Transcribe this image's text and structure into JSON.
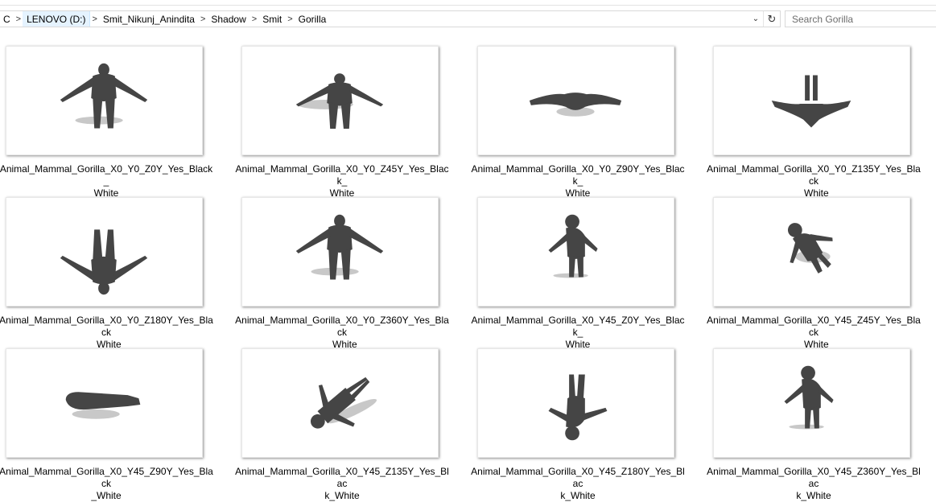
{
  "breadcrumb": {
    "items": [
      {
        "label": "C",
        "highlight": false
      },
      {
        "label": "LENOVO (D:)",
        "highlight": true
      },
      {
        "label": "Smit_Nikunj_Anindita",
        "highlight": false
      },
      {
        "label": "Shadow",
        "highlight": false
      },
      {
        "label": "Smit",
        "highlight": false
      },
      {
        "label": "Gorilla",
        "highlight": false
      }
    ],
    "separator": ">",
    "dropdown_icon": "chevron-down-icon",
    "refresh_icon": "refresh-icon"
  },
  "search": {
    "placeholder": "Search Gorilla"
  },
  "files": [
    {
      "name_line1": "Animal_Mammal_Gorilla_X0_Y0_Z0Y_Yes_Black_",
      "name_line2": "White",
      "pose": "front"
    },
    {
      "name_line1": "Animal_Mammal_Gorilla_X0_Y0_Z45Y_Yes_Black_",
      "name_line2": "White",
      "pose": "front-low"
    },
    {
      "name_line1": "Animal_Mammal_Gorilla_X0_Y0_Z90Y_Yes_Black_",
      "name_line2": "White",
      "pose": "top-flat"
    },
    {
      "name_line1": "Animal_Mammal_Gorilla_X0_Y0_Z135Y_Yes_Black",
      "name_line2": "_White",
      "pose": "top-wings"
    },
    {
      "name_line1": "Animal_Mammal_Gorilla_X0_Y0_Z180Y_Yes_Black",
      "name_line2": "_White",
      "pose": "inverted"
    },
    {
      "name_line1": "Animal_Mammal_Gorilla_X0_Y0_Z360Y_Yes_Black",
      "name_line2": "_White",
      "pose": "front"
    },
    {
      "name_line1": "Animal_Mammal_Gorilla_X0_Y45_Z0Y_Yes_Black_",
      "name_line2": "White",
      "pose": "side"
    },
    {
      "name_line1": "Animal_Mammal_Gorilla_X0_Y45_Z45Y_Yes_Black",
      "name_line2": "_White",
      "pose": "tilt"
    },
    {
      "name_line1": "Animal_Mammal_Gorilla_X0_Y45_Z90Y_Yes_Black",
      "name_line2": "_White",
      "pose": "lying"
    },
    {
      "name_line1": "Animal_Mammal_Gorilla_X0_Y45_Z135Y_Yes_Blac",
      "name_line2": "k_White",
      "pose": "diagonal"
    },
    {
      "name_line1": "Animal_Mammal_Gorilla_X0_Y45_Z180Y_Yes_Blac",
      "name_line2": "k_White",
      "pose": "inverted-side"
    },
    {
      "name_line1": "Animal_Mammal_Gorilla_X0_Y45_Z360Y_Yes_Blac",
      "name_line2": "k_White",
      "pose": "side"
    }
  ],
  "colors": {
    "figure": "#454545",
    "shadow": "#c8c8c8",
    "highlight": "#e5f3ff"
  }
}
